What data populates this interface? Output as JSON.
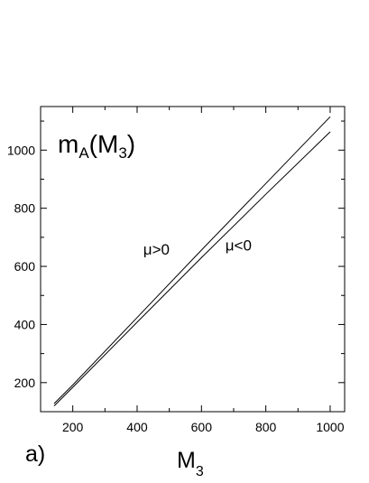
{
  "chart_data": {
    "type": "line",
    "title_main": "m",
    "title_sub": "A",
    "title_arg_main": "M",
    "title_arg_sub": "3",
    "xlabel_main": "M",
    "xlabel_sub": "3",
    "panel_label": "a)",
    "xlim": [
      100,
      1045
    ],
    "ylim": [
      100,
      1150
    ],
    "x_ticks": [
      200,
      400,
      600,
      800,
      1000
    ],
    "y_ticks": [
      200,
      400,
      600,
      800,
      1000
    ],
    "x_tick_labels": [
      "200",
      "400",
      "600",
      "800",
      "1000"
    ],
    "y_tick_labels": [
      "200",
      "400",
      "600",
      "800",
      "1000"
    ],
    "series": [
      {
        "name": "μ>0",
        "x": [
          142,
          200,
          400,
          600,
          800,
          1000
        ],
        "y": [
          128,
          192,
          424,
          656,
          885,
          1115
        ]
      },
      {
        "name": "μ<0",
        "x": [
          142,
          200,
          400,
          600,
          800,
          1000
        ],
        "y": [
          120,
          184,
          408,
          630,
          848,
          1063
        ]
      }
    ],
    "annotations": [
      {
        "text": "μ>0",
        "x": 460,
        "y": 640
      },
      {
        "text": "μ<0",
        "x": 715,
        "y": 655
      }
    ],
    "grid": false
  }
}
